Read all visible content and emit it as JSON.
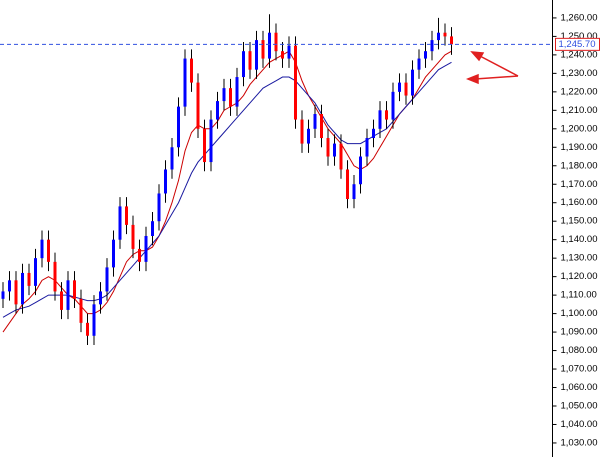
{
  "chart_data": {
    "type": "candlestick",
    "up_color": "#0000ff",
    "down_color": "#ff0000",
    "ylim": [
      1022.4,
      1269.7
    ],
    "yticks": [
      {
        "value": 1030,
        "label": "1,030.00"
      },
      {
        "value": 1040,
        "label": "1,040.00"
      },
      {
        "value": 1050,
        "label": "1,050.00"
      },
      {
        "value": 1060,
        "label": "1,060.00"
      },
      {
        "value": 1070,
        "label": "1,070.00"
      },
      {
        "value": 1080,
        "label": "1,080.00"
      },
      {
        "value": 1090,
        "label": "1,090.00"
      },
      {
        "value": 1100,
        "label": "1,100.00"
      },
      {
        "value": 1110,
        "label": "1,110.00"
      },
      {
        "value": 1120,
        "label": "1,120.00"
      },
      {
        "value": 1130,
        "label": "1,130.00"
      },
      {
        "value": 1140,
        "label": "1,140.00"
      },
      {
        "value": 1150,
        "label": "1,150.00"
      },
      {
        "value": 1160,
        "label": "1,160.00"
      },
      {
        "value": 1170,
        "label": "1,170.00"
      },
      {
        "value": 1180,
        "label": "1,180.00"
      },
      {
        "value": 1190,
        "label": "1,190.00"
      },
      {
        "value": 1200,
        "label": "1,200.00"
      },
      {
        "value": 1210,
        "label": "1,210.00"
      },
      {
        "value": 1220,
        "label": "1,220.00"
      },
      {
        "value": 1230,
        "label": "1,230.00"
      },
      {
        "value": 1240,
        "label": "1,240.00"
      },
      {
        "value": 1250,
        "label": "1,250.00"
      },
      {
        "value": 1260,
        "label": "1,260.00"
      }
    ],
    "last_price": {
      "value": 1245.7,
      "label": "1,245.70"
    },
    "open": [
      1108,
      1112,
      1118,
      1105,
      1122,
      1115,
      1130,
      1140,
      1128,
      1112,
      1102,
      1118,
      1108,
      1095,
      1088,
      1105,
      1112,
      1125,
      1140,
      1158,
      1148,
      1135,
      1128,
      1142,
      1150,
      1165,
      1178,
      1190,
      1212,
      1238,
      1225,
      1200,
      1182,
      1205,
      1215,
      1222,
      1212,
      1228,
      1242,
      1232,
      1248,
      1238,
      1252,
      1242,
      1238,
      1245,
      1205,
      1192,
      1200,
      1208,
      1195,
      1185,
      1192,
      1178,
      1162,
      1170,
      1185,
      1195,
      1200,
      1210,
      1205,
      1220,
      1225,
      1218,
      1232,
      1238,
      1242,
      1248,
      1252,
      1250
    ],
    "high": [
      1117,
      1123,
      1123,
      1127,
      1127,
      1135,
      1145,
      1145,
      1133,
      1117,
      1123,
      1123,
      1113,
      1100,
      1110,
      1117,
      1130,
      1145,
      1163,
      1163,
      1153,
      1140,
      1147,
      1155,
      1170,
      1183,
      1195,
      1217,
      1243,
      1243,
      1230,
      1205,
      1210,
      1220,
      1227,
      1227,
      1233,
      1247,
      1247,
      1253,
      1253,
      1262,
      1257,
      1247,
      1250,
      1250,
      1210,
      1205,
      1213,
      1213,
      1200,
      1197,
      1197,
      1183,
      1175,
      1190,
      1200,
      1205,
      1215,
      1215,
      1225,
      1230,
      1230,
      1237,
      1243,
      1247,
      1253,
      1260,
      1257,
      1255
    ],
    "low": [
      1103,
      1107,
      1100,
      1100,
      1110,
      1110,
      1125,
      1123,
      1107,
      1097,
      1097,
      1103,
      1090,
      1083,
      1083,
      1100,
      1107,
      1120,
      1135,
      1143,
      1130,
      1123,
      1123,
      1137,
      1145,
      1160,
      1173,
      1185,
      1207,
      1220,
      1195,
      1177,
      1177,
      1200,
      1210,
      1207,
      1207,
      1223,
      1227,
      1227,
      1233,
      1233,
      1237,
      1233,
      1233,
      1200,
      1187,
      1187,
      1195,
      1190,
      1180,
      1180,
      1173,
      1157,
      1157,
      1165,
      1180,
      1190,
      1195,
      1200,
      1200,
      1215,
      1213,
      1213,
      1227,
      1233,
      1237,
      1243,
      1245,
      1240
    ],
    "close": [
      1112,
      1118,
      1105,
      1122,
      1115,
      1130,
      1140,
      1128,
      1112,
      1102,
      1118,
      1108,
      1095,
      1088,
      1105,
      1112,
      1125,
      1140,
      1158,
      1148,
      1135,
      1128,
      1142,
      1150,
      1165,
      1178,
      1190,
      1212,
      1238,
      1225,
      1200,
      1182,
      1205,
      1215,
      1222,
      1212,
      1228,
      1242,
      1232,
      1248,
      1238,
      1252,
      1242,
      1238,
      1245,
      1205,
      1192,
      1200,
      1208,
      1195,
      1185,
      1192,
      1178,
      1162,
      1170,
      1185,
      1195,
      1200,
      1210,
      1205,
      1220,
      1225,
      1218,
      1232,
      1238,
      1242,
      1248,
      1252,
      1250,
      1245.7
    ],
    "series": [
      {
        "color": "#cc0000",
        "values": [
          1090,
          1095,
          1100,
          1105,
          1108,
          1112,
          1118,
          1120,
          1118,
          1114,
          1110,
          1108,
          1104,
          1100,
          1100,
          1102,
          1106,
          1112,
          1120,
          1128,
          1132,
          1134,
          1134,
          1136,
          1142,
          1150,
          1160,
          1172,
          1188,
          1198,
          1202,
          1200,
          1200,
          1204,
          1210,
          1212,
          1214,
          1218,
          1224,
          1228,
          1232,
          1236,
          1238,
          1240,
          1242,
          1236,
          1226,
          1218,
          1212,
          1206,
          1200,
          1196,
          1192,
          1186,
          1180,
          1178,
          1180,
          1184,
          1190,
          1196,
          1202,
          1208,
          1212,
          1216,
          1222,
          1228,
          1232,
          1236,
          1240,
          1242
        ]
      },
      {
        "color": "#1a1aa0",
        "values": [
          1098,
          1100,
          1102,
          1103,
          1104,
          1106,
          1108,
          1110,
          1110,
          1110,
          1110,
          1109,
          1108,
          1107,
          1107,
          1108,
          1110,
          1114,
          1118,
          1122,
          1126,
          1130,
          1134,
          1138,
          1142,
          1148,
          1154,
          1160,
          1168,
          1176,
          1182,
          1186,
          1190,
          1194,
          1198,
          1202,
          1206,
          1210,
          1214,
          1218,
          1222,
          1224,
          1226,
          1228,
          1228,
          1226,
          1222,
          1218,
          1214,
          1208,
          1202,
          1198,
          1194,
          1192,
          1192,
          1192,
          1194,
          1196,
          1198,
          1200,
          1204,
          1208,
          1212,
          1216,
          1220,
          1224,
          1228,
          1232,
          1234,
          1236
        ]
      }
    ]
  }
}
